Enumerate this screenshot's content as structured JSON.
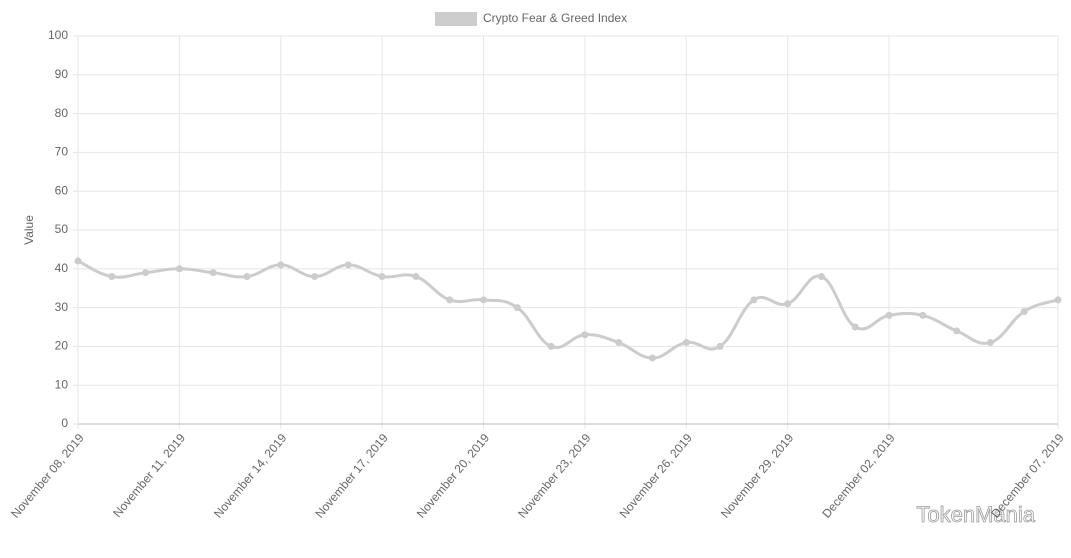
{
  "chart_data": {
    "type": "line",
    "legend": "Crypto Fear & Greed Index",
    "y_label": "Value",
    "watermark": "TokenMania",
    "color": "#cccccc",
    "grid": true,
    "categories": [
      "November 08, 2019",
      null,
      null,
      "November 11, 2019",
      null,
      null,
      "November 14, 2019",
      null,
      null,
      "November 17, 2019",
      null,
      null,
      "November 20, 2019",
      null,
      null,
      "November 23, 2019",
      null,
      null,
      "November 26, 2019",
      null,
      null,
      "November 29, 2019",
      null,
      null,
      "December 02, 2019",
      null,
      null,
      null,
      null,
      "December 07, 2019"
    ],
    "values": [
      42,
      38,
      39,
      40,
      39,
      38,
      41,
      38,
      41,
      38,
      38,
      32,
      32,
      30,
      20,
      23,
      21,
      17,
      21,
      20,
      32,
      31,
      38,
      25,
      28,
      28,
      24,
      21,
      29,
      32
    ],
    "ylim": [
      0,
      100
    ],
    "yticks": [
      0,
      10,
      20,
      30,
      40,
      50,
      60,
      70,
      80,
      90,
      100
    ]
  }
}
